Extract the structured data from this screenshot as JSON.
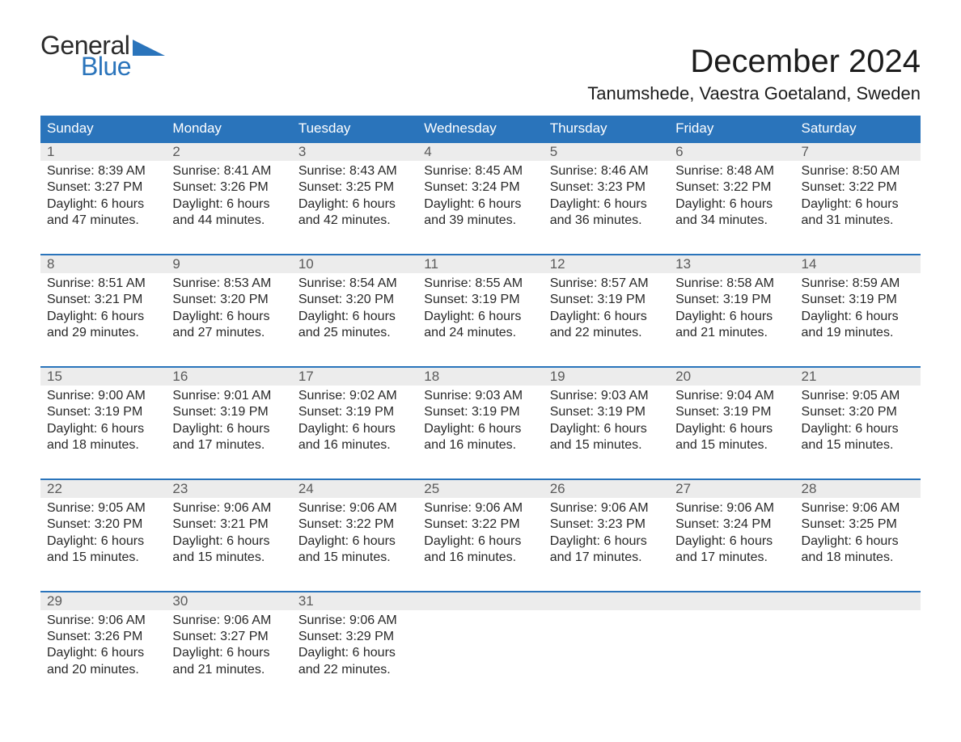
{
  "logo": {
    "top": "General",
    "bottom": "Blue"
  },
  "title": "December 2024",
  "location": "Tanumshede, Vaestra Goetaland, Sweden",
  "colors": {
    "accent": "#2a74bb",
    "header_bg": "#2a74bb",
    "header_text": "#ffffff",
    "daynum_bg": "#ececec",
    "daynum_text": "#5a5a5a",
    "body_text": "#282828",
    "page_bg": "#ffffff"
  },
  "typography": {
    "title_fontsize": 40,
    "location_fontsize": 22,
    "header_fontsize": 17,
    "daynum_fontsize": 17,
    "body_fontsize": 16,
    "logo_fontsize": 32
  },
  "columns": [
    "Sunday",
    "Monday",
    "Tuesday",
    "Wednesday",
    "Thursday",
    "Friday",
    "Saturday"
  ],
  "weeks": [
    [
      {
        "n": "1",
        "sunrise": "8:39 AM",
        "sunset": "3:27 PM",
        "dl1": "Daylight: 6 hours",
        "dl2": "and 47 minutes."
      },
      {
        "n": "2",
        "sunrise": "8:41 AM",
        "sunset": "3:26 PM",
        "dl1": "Daylight: 6 hours",
        "dl2": "and 44 minutes."
      },
      {
        "n": "3",
        "sunrise": "8:43 AM",
        "sunset": "3:25 PM",
        "dl1": "Daylight: 6 hours",
        "dl2": "and 42 minutes."
      },
      {
        "n": "4",
        "sunrise": "8:45 AM",
        "sunset": "3:24 PM",
        "dl1": "Daylight: 6 hours",
        "dl2": "and 39 minutes."
      },
      {
        "n": "5",
        "sunrise": "8:46 AM",
        "sunset": "3:23 PM",
        "dl1": "Daylight: 6 hours",
        "dl2": "and 36 minutes."
      },
      {
        "n": "6",
        "sunrise": "8:48 AM",
        "sunset": "3:22 PM",
        "dl1": "Daylight: 6 hours",
        "dl2": "and 34 minutes."
      },
      {
        "n": "7",
        "sunrise": "8:50 AM",
        "sunset": "3:22 PM",
        "dl1": "Daylight: 6 hours",
        "dl2": "and 31 minutes."
      }
    ],
    [
      {
        "n": "8",
        "sunrise": "8:51 AM",
        "sunset": "3:21 PM",
        "dl1": "Daylight: 6 hours",
        "dl2": "and 29 minutes."
      },
      {
        "n": "9",
        "sunrise": "8:53 AM",
        "sunset": "3:20 PM",
        "dl1": "Daylight: 6 hours",
        "dl2": "and 27 minutes."
      },
      {
        "n": "10",
        "sunrise": "8:54 AM",
        "sunset": "3:20 PM",
        "dl1": "Daylight: 6 hours",
        "dl2": "and 25 minutes."
      },
      {
        "n": "11",
        "sunrise": "8:55 AM",
        "sunset": "3:19 PM",
        "dl1": "Daylight: 6 hours",
        "dl2": "and 24 minutes."
      },
      {
        "n": "12",
        "sunrise": "8:57 AM",
        "sunset": "3:19 PM",
        "dl1": "Daylight: 6 hours",
        "dl2": "and 22 minutes."
      },
      {
        "n": "13",
        "sunrise": "8:58 AM",
        "sunset": "3:19 PM",
        "dl1": "Daylight: 6 hours",
        "dl2": "and 21 minutes."
      },
      {
        "n": "14",
        "sunrise": "8:59 AM",
        "sunset": "3:19 PM",
        "dl1": "Daylight: 6 hours",
        "dl2": "and 19 minutes."
      }
    ],
    [
      {
        "n": "15",
        "sunrise": "9:00 AM",
        "sunset": "3:19 PM",
        "dl1": "Daylight: 6 hours",
        "dl2": "and 18 minutes."
      },
      {
        "n": "16",
        "sunrise": "9:01 AM",
        "sunset": "3:19 PM",
        "dl1": "Daylight: 6 hours",
        "dl2": "and 17 minutes."
      },
      {
        "n": "17",
        "sunrise": "9:02 AM",
        "sunset": "3:19 PM",
        "dl1": "Daylight: 6 hours",
        "dl2": "and 16 minutes."
      },
      {
        "n": "18",
        "sunrise": "9:03 AM",
        "sunset": "3:19 PM",
        "dl1": "Daylight: 6 hours",
        "dl2": "and 16 minutes."
      },
      {
        "n": "19",
        "sunrise": "9:03 AM",
        "sunset": "3:19 PM",
        "dl1": "Daylight: 6 hours",
        "dl2": "and 15 minutes."
      },
      {
        "n": "20",
        "sunrise": "9:04 AM",
        "sunset": "3:19 PM",
        "dl1": "Daylight: 6 hours",
        "dl2": "and 15 minutes."
      },
      {
        "n": "21",
        "sunrise": "9:05 AM",
        "sunset": "3:20 PM",
        "dl1": "Daylight: 6 hours",
        "dl2": "and 15 minutes."
      }
    ],
    [
      {
        "n": "22",
        "sunrise": "9:05 AM",
        "sunset": "3:20 PM",
        "dl1": "Daylight: 6 hours",
        "dl2": "and 15 minutes."
      },
      {
        "n": "23",
        "sunrise": "9:06 AM",
        "sunset": "3:21 PM",
        "dl1": "Daylight: 6 hours",
        "dl2": "and 15 minutes."
      },
      {
        "n": "24",
        "sunrise": "9:06 AM",
        "sunset": "3:22 PM",
        "dl1": "Daylight: 6 hours",
        "dl2": "and 15 minutes."
      },
      {
        "n": "25",
        "sunrise": "9:06 AM",
        "sunset": "3:22 PM",
        "dl1": "Daylight: 6 hours",
        "dl2": "and 16 minutes."
      },
      {
        "n": "26",
        "sunrise": "9:06 AM",
        "sunset": "3:23 PM",
        "dl1": "Daylight: 6 hours",
        "dl2": "and 17 minutes."
      },
      {
        "n": "27",
        "sunrise": "9:06 AM",
        "sunset": "3:24 PM",
        "dl1": "Daylight: 6 hours",
        "dl2": "and 17 minutes."
      },
      {
        "n": "28",
        "sunrise": "9:06 AM",
        "sunset": "3:25 PM",
        "dl1": "Daylight: 6 hours",
        "dl2": "and 18 minutes."
      }
    ],
    [
      {
        "n": "29",
        "sunrise": "9:06 AM",
        "sunset": "3:26 PM",
        "dl1": "Daylight: 6 hours",
        "dl2": "and 20 minutes."
      },
      {
        "n": "30",
        "sunrise": "9:06 AM",
        "sunset": "3:27 PM",
        "dl1": "Daylight: 6 hours",
        "dl2": "and 21 minutes."
      },
      {
        "n": "31",
        "sunrise": "9:06 AM",
        "sunset": "3:29 PM",
        "dl1": "Daylight: 6 hours",
        "dl2": "and 22 minutes."
      },
      null,
      null,
      null,
      null
    ]
  ],
  "labels": {
    "sunrise_prefix": "Sunrise: ",
    "sunset_prefix": "Sunset: "
  }
}
